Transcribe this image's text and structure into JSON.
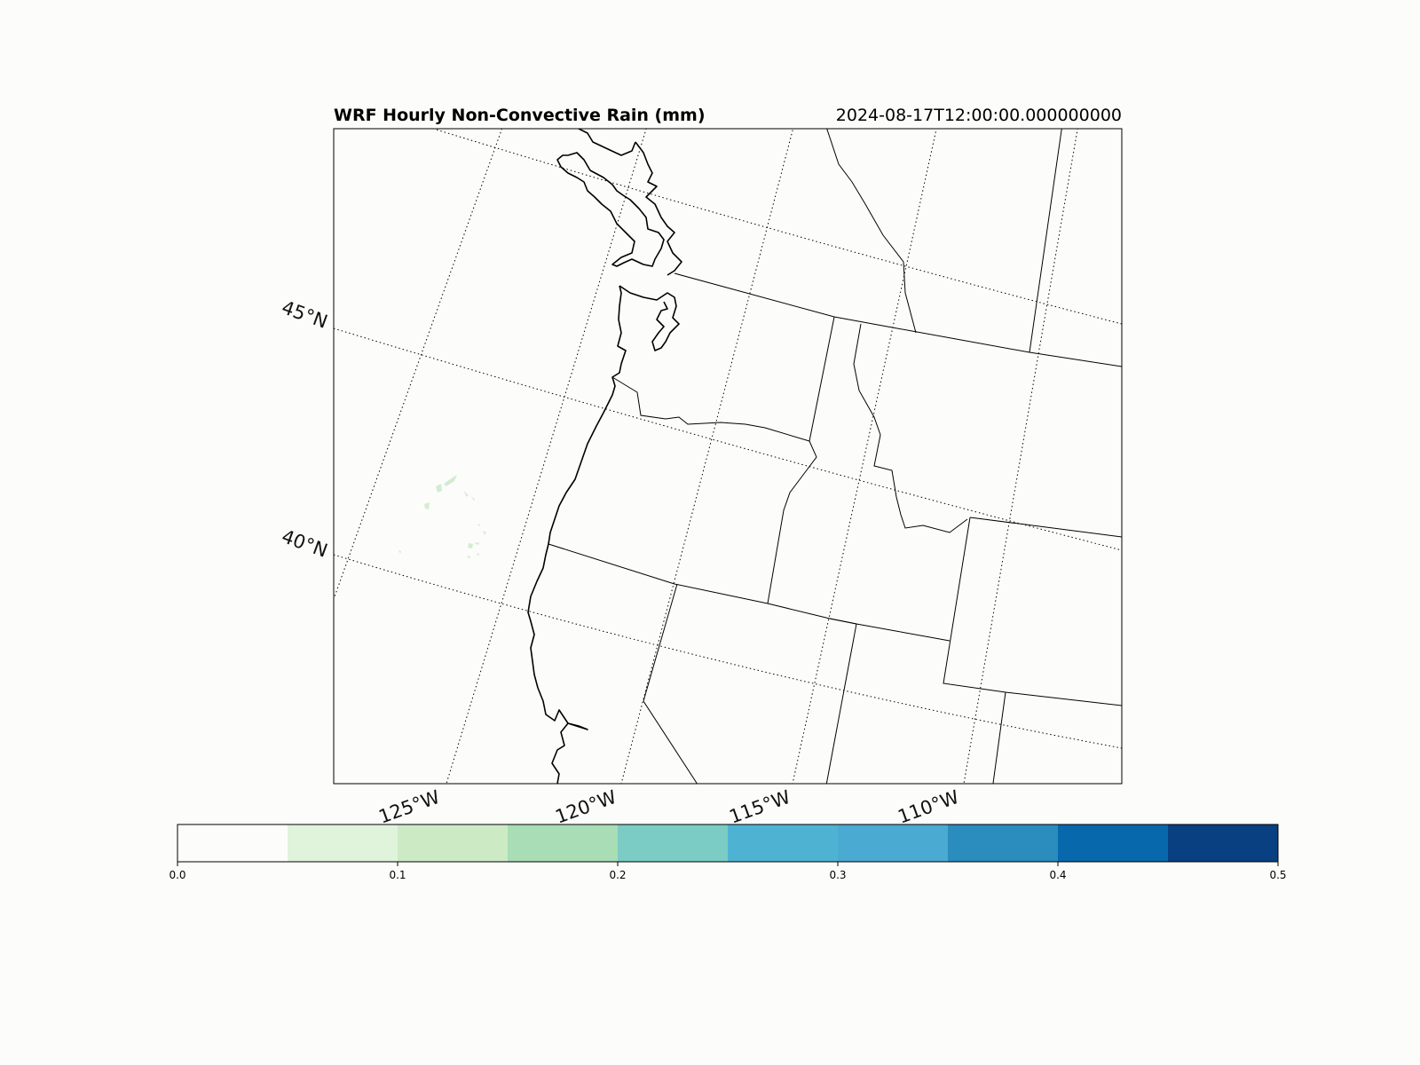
{
  "title": "WRF Hourly Non-Convective Rain (mm)",
  "valid_time": "2024-08-17T12:00:00.000000000",
  "gridlines": {
    "lat_labels": [
      "45°N",
      "40°N"
    ],
    "lon_labels": [
      "125°W",
      "120°W",
      "115°W",
      "110°W"
    ]
  },
  "colorbar": {
    "min": 0.0,
    "max": 0.5,
    "step": 0.05,
    "tick_labels": [
      "0.0",
      "0.1",
      "0.2",
      "0.3",
      "0.4",
      "0.5"
    ],
    "colors": [
      "#fcfdfb",
      "#e0f3db",
      "#ccebc5",
      "#a8ddb5",
      "#7bccc4",
      "#4eb3d3",
      "#4aaad2",
      "#2b8cbe",
      "#0868ac",
      "#084081"
    ]
  },
  "precip_field": {
    "max_value_shown": "0.05-0.1",
    "color": "#d3ecd1"
  }
}
